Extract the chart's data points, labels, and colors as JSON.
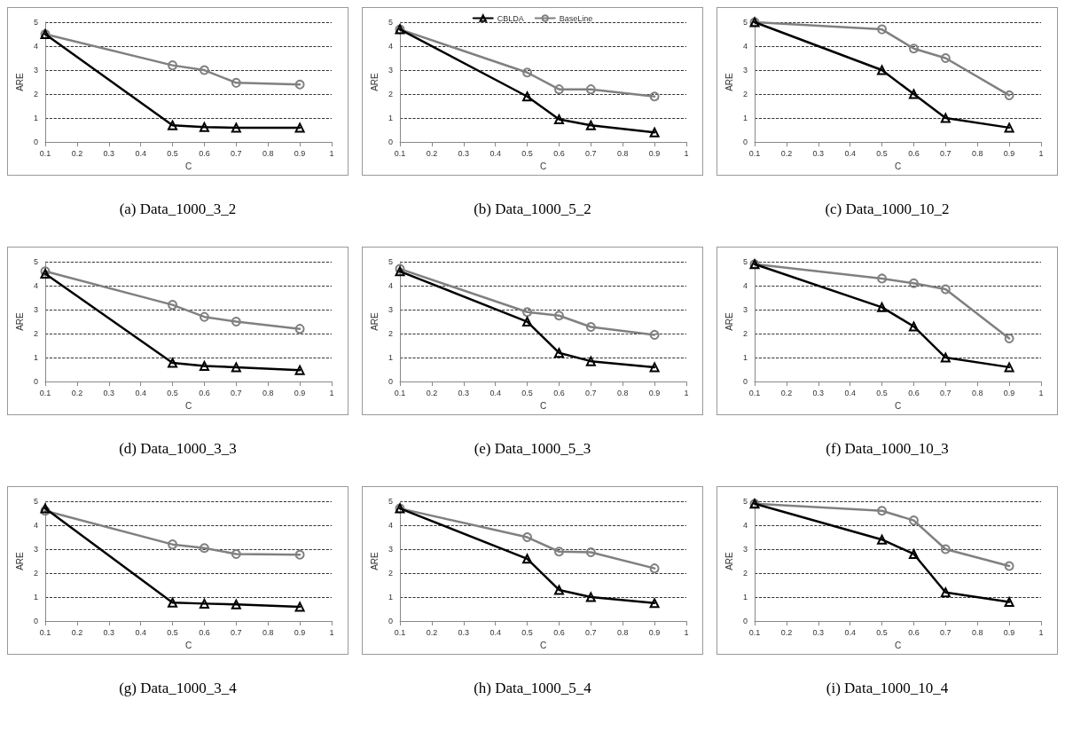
{
  "chart_data": [
    {
      "type": "line",
      "title": "(a) Data_1000_3_2",
      "xlabel": "C",
      "ylabel": "ARE",
      "xlim": [
        0.1,
        1
      ],
      "xticks": [
        0.1,
        0.2,
        0.3,
        0.4,
        0.5,
        0.6,
        0.7,
        0.8,
        0.9,
        1
      ],
      "ylim": [
        0,
        5
      ],
      "yticks": [
        0,
        1,
        2,
        3,
        4,
        5
      ],
      "grid": "y",
      "legend": false,
      "line_style": "solid",
      "x": [
        0.1,
        0.5,
        0.6,
        0.7,
        0.9
      ],
      "series": [
        {
          "color": "#000000",
          "marker": "triangle",
          "values": [
            4.5,
            0.7,
            0.62,
            0.6,
            0.6
          ]
        },
        {
          "color": "#808080",
          "marker": "circle",
          "values": [
            4.5,
            3.2,
            3.0,
            2.47,
            2.4
          ]
        }
      ]
    },
    {
      "type": "line",
      "title": "(b) Data_1000_5_2",
      "xlabel": "C",
      "ylabel": "ARE",
      "xlim": [
        0.1,
        1
      ],
      "xticks": [
        0.1,
        0.2,
        0.3,
        0.4,
        0.5,
        0.6,
        0.7,
        0.8,
        0.9,
        1
      ],
      "ylim": [
        0,
        5
      ],
      "yticks": [
        0,
        1,
        2,
        3,
        4,
        5
      ],
      "grid": "y",
      "legend": "top",
      "line_style": "solid",
      "x": [
        0.1,
        0.5,
        0.6,
        0.7,
        0.9
      ],
      "series": [
        {
          "name": "CBLDA",
          "color": "#000000",
          "marker": "triangle",
          "values": [
            4.7,
            1.9,
            0.95,
            0.7,
            0.4
          ]
        },
        {
          "name": "BaseLine",
          "color": "#808080",
          "marker": "circle",
          "values": [
            4.7,
            2.9,
            2.2,
            2.2,
            1.9
          ]
        }
      ]
    },
    {
      "type": "line",
      "title": "(c) Data_1000_10_2",
      "xlabel": "C",
      "ylabel": "ARE",
      "xlim": [
        0.1,
        1
      ],
      "xticks": [
        0.1,
        0.2,
        0.3,
        0.4,
        0.5,
        0.6,
        0.7,
        0.8,
        0.9,
        1
      ],
      "ylim": [
        0,
        5
      ],
      "yticks": [
        0,
        1,
        2,
        3,
        4,
        5
      ],
      "grid": "y",
      "legend": false,
      "line_style": "solid",
      "x": [
        0.1,
        0.5,
        0.6,
        0.7,
        0.9
      ],
      "series": [
        {
          "color": "#000000",
          "marker": "triangle",
          "values": [
            5.0,
            3.0,
            2.0,
            1.0,
            0.6
          ]
        },
        {
          "color": "#808080",
          "marker": "circle",
          "values": [
            5.0,
            4.7,
            3.9,
            3.5,
            1.95
          ]
        }
      ]
    },
    {
      "type": "line",
      "title": "(d) Data_1000_3_3",
      "xlabel": "C",
      "ylabel": "ARE",
      "xlim": [
        0.1,
        1
      ],
      "xticks": [
        0.1,
        0.2,
        0.3,
        0.4,
        0.5,
        0.6,
        0.7,
        0.8,
        0.9,
        1
      ],
      "ylim": [
        0,
        5
      ],
      "yticks": [
        0,
        1,
        2,
        3,
        4,
        5
      ],
      "grid": "y",
      "legend": false,
      "line_style": "solid",
      "x": [
        0.1,
        0.5,
        0.6,
        0.7,
        0.9
      ],
      "series": [
        {
          "color": "#000000",
          "marker": "triangle",
          "values": [
            4.5,
            0.78,
            0.65,
            0.6,
            0.48
          ]
        },
        {
          "color": "#808080",
          "marker": "circle",
          "values": [
            4.6,
            3.2,
            2.7,
            2.5,
            2.2
          ]
        }
      ]
    },
    {
      "type": "line",
      "title": "(e) Data_1000_5_3",
      "xlabel": "C",
      "ylabel": "ARE",
      "xlim": [
        0.1,
        1
      ],
      "xticks": [
        0.1,
        0.2,
        0.3,
        0.4,
        0.5,
        0.6,
        0.7,
        0.8,
        0.9,
        1
      ],
      "ylim": [
        0,
        5
      ],
      "yticks": [
        0,
        1,
        2,
        3,
        4,
        5
      ],
      "grid": "y",
      "legend": false,
      "line_style": "solid",
      "x": [
        0.1,
        0.5,
        0.6,
        0.7,
        0.9
      ],
      "series": [
        {
          "color": "#000000",
          "marker": "triangle",
          "values": [
            4.6,
            2.5,
            1.2,
            0.85,
            0.6
          ]
        },
        {
          "color": "#808080",
          "marker": "circle",
          "values": [
            4.7,
            2.9,
            2.75,
            2.28,
            1.95
          ]
        }
      ]
    },
    {
      "type": "line",
      "title": "(f) Data_1000_10_3",
      "xlabel": "C",
      "ylabel": "ARE",
      "xlim": [
        0.1,
        1
      ],
      "xticks": [
        0.1,
        0.2,
        0.3,
        0.4,
        0.5,
        0.6,
        0.7,
        0.8,
        0.9,
        1
      ],
      "ylim": [
        0,
        5
      ],
      "yticks": [
        0,
        1,
        2,
        3,
        4,
        5
      ],
      "grid": "y",
      "legend": false,
      "line_style": "solid",
      "x": [
        0.1,
        0.5,
        0.6,
        0.7,
        0.9
      ],
      "series": [
        {
          "color": "#000000",
          "marker": "triangle",
          "values": [
            4.9,
            3.1,
            2.3,
            1.0,
            0.6
          ]
        },
        {
          "color": "#808080",
          "marker": "circle",
          "values": [
            4.9,
            4.3,
            4.1,
            3.85,
            1.8
          ]
        }
      ]
    },
    {
      "type": "line",
      "title": "(g) Data_1000_3_4",
      "xlabel": "C",
      "ylabel": "ARE",
      "xlim": [
        0.1,
        1
      ],
      "xticks": [
        0.1,
        0.2,
        0.3,
        0.4,
        0.5,
        0.6,
        0.7,
        0.8,
        0.9,
        1
      ],
      "ylim": [
        0,
        5
      ],
      "yticks": [
        0,
        1,
        2,
        3,
        4,
        5
      ],
      "grid": "y",
      "legend": false,
      "line_style": "solid",
      "x": [
        0.1,
        0.5,
        0.6,
        0.7,
        0.9
      ],
      "series": [
        {
          "color": "#000000",
          "marker": "triangle",
          "values": [
            4.7,
            0.77,
            0.73,
            0.7,
            0.6
          ]
        },
        {
          "color": "#808080",
          "marker": "circle",
          "values": [
            4.6,
            3.2,
            3.05,
            2.8,
            2.77
          ]
        }
      ]
    },
    {
      "type": "line",
      "title": "(h) Data_1000_5_4",
      "xlabel": "C",
      "ylabel": "ARE",
      "xlim": [
        0.1,
        1
      ],
      "xticks": [
        0.1,
        0.2,
        0.3,
        0.4,
        0.5,
        0.6,
        0.7,
        0.8,
        0.9,
        1
      ],
      "ylim": [
        0,
        5
      ],
      "yticks": [
        0,
        1,
        2,
        3,
        4,
        5
      ],
      "grid": "y",
      "legend": false,
      "line_style": "solid",
      "x": [
        0.1,
        0.5,
        0.6,
        0.7,
        0.9
      ],
      "series": [
        {
          "color": "#000000",
          "marker": "triangle",
          "values": [
            4.7,
            2.6,
            1.3,
            1.0,
            0.75
          ]
        },
        {
          "color": "#808080",
          "marker": "circle",
          "values": [
            4.7,
            3.5,
            2.9,
            2.87,
            2.2
          ]
        }
      ]
    },
    {
      "type": "line",
      "title": "(i) Data_1000_10_4",
      "xlabel": "C",
      "ylabel": "ARE",
      "xlim": [
        0.1,
        1
      ],
      "xticks": [
        0.1,
        0.2,
        0.3,
        0.4,
        0.5,
        0.6,
        0.7,
        0.8,
        0.9,
        1
      ],
      "ylim": [
        0,
        5
      ],
      "yticks": [
        0,
        1,
        2,
        3,
        4,
        5
      ],
      "grid": "y",
      "legend": false,
      "line_style": "solid",
      "x": [
        0.1,
        0.5,
        0.6,
        0.7,
        0.9
      ],
      "series": [
        {
          "color": "#000000",
          "marker": "triangle",
          "values": [
            4.9,
            3.4,
            2.8,
            1.2,
            0.8
          ]
        },
        {
          "color": "#808080",
          "marker": "circle",
          "values": [
            4.9,
            4.6,
            4.2,
            3.0,
            2.3
          ]
        }
      ]
    }
  ]
}
